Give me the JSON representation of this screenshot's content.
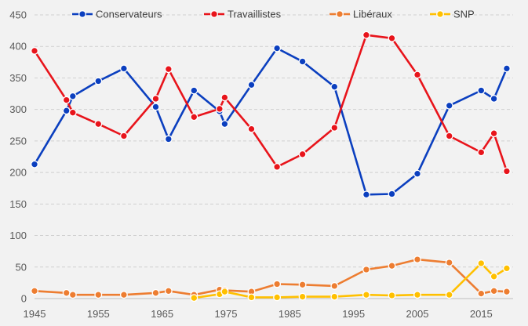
{
  "chart_data": {
    "type": "line",
    "title": "",
    "xlabel": "",
    "ylabel": "",
    "xlim": [
      1945,
      2020
    ],
    "ylim": [
      0,
      450
    ],
    "x_ticks": [
      1945,
      1955,
      1965,
      1975,
      1985,
      1995,
      2005,
      2015
    ],
    "y_ticks": [
      0,
      50,
      100,
      150,
      200,
      250,
      300,
      350,
      400,
      450
    ],
    "grid": "horizontal dashed",
    "legend_position": "top",
    "x": [
      1945,
      1950,
      1951,
      1955,
      1959,
      1964,
      1966,
      1970,
      1974,
      1974.8,
      1979,
      1983,
      1987,
      1992,
      1997,
      2001,
      2005,
      2010,
      2015,
      2017,
      2019
    ],
    "series": [
      {
        "name": "Conservateurs",
        "color": "#0b3fbf",
        "values": [
          213,
          298,
          321,
          345,
          365,
          304,
          253,
          330,
          297,
          277,
          339,
          397,
          376,
          336,
          165,
          166,
          198,
          306,
          330,
          317,
          365
        ]
      },
      {
        "name": "Travaillistes",
        "color": "#e8141b",
        "values": [
          393,
          315,
          295,
          277,
          258,
          317,
          364,
          288,
          301,
          319,
          269,
          209,
          229,
          271,
          418,
          413,
          355,
          258,
          232,
          262,
          202
        ]
      },
      {
        "name": "Libéraux",
        "color": "#ed7d31",
        "values": [
          12,
          9,
          6,
          6,
          6,
          9,
          12,
          6,
          14,
          13,
          11,
          23,
          22,
          20,
          46,
          52,
          62,
          57,
          8,
          12,
          11
        ]
      },
      {
        "name": "SNP",
        "color": "#ffc000",
        "values": [
          null,
          null,
          null,
          null,
          null,
          null,
          null,
          1,
          7,
          11,
          2,
          2,
          3,
          3,
          6,
          5,
          6,
          6,
          56,
          35,
          48
        ]
      }
    ]
  }
}
